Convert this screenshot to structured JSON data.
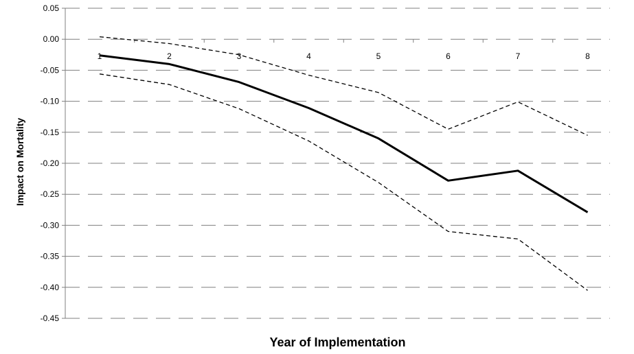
{
  "chart_data": {
    "type": "line",
    "title": "",
    "xlabel": "Year of Implementation",
    "ylabel": "Impact on Mortality",
    "x": [
      "1",
      "2",
      "3",
      "4",
      "5",
      "6",
      "7",
      "8"
    ],
    "yticks": [
      "0.05",
      "0.00",
      "-0.05",
      "-0.10",
      "-0.15",
      "-0.20",
      "-0.25",
      "-0.30",
      "-0.35",
      "-0.40",
      "-0.45"
    ],
    "ylim": [
      -0.45,
      0.05
    ],
    "grid": true,
    "legend": "none",
    "series": [
      {
        "style": "solid",
        "color": "#000000",
        "values": [
          -0.026,
          -0.04,
          -0.069,
          -0.111,
          -0.16,
          -0.228,
          -0.212,
          -0.279
        ]
      },
      {
        "style": "dashed",
        "color": "#000000",
        "values": [
          0.004,
          -0.007,
          -0.025,
          -0.058,
          -0.086,
          -0.145,
          -0.101,
          -0.155
        ]
      },
      {
        "style": "dashed",
        "color": "#000000",
        "values": [
          -0.056,
          -0.073,
          -0.112,
          -0.164,
          -0.231,
          -0.31,
          -0.322,
          -0.405
        ]
      }
    ]
  }
}
